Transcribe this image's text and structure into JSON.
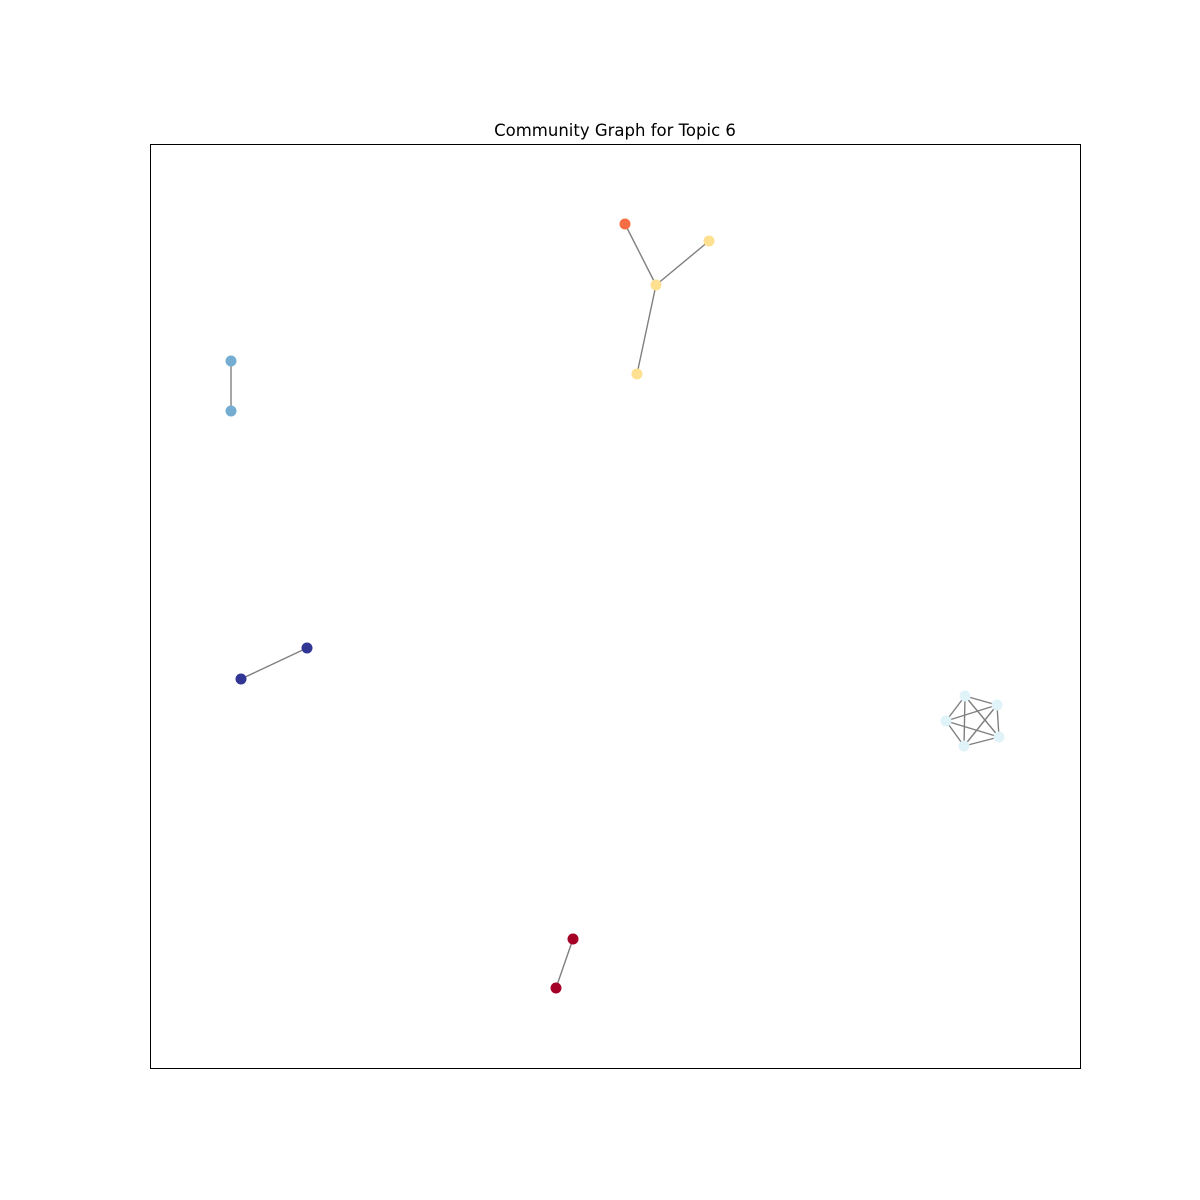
{
  "title": "Community Graph for Topic 6",
  "colors": {
    "background": "#ffffff",
    "frame": "#000000",
    "edge": "#7f7f7f"
  },
  "communities": [
    {
      "id": "light-blue-clique",
      "color": "#e0f3f8",
      "nodes": [
        "a1",
        "a2",
        "a3",
        "a4",
        "a5"
      ],
      "edges": [
        [
          "a1",
          "a2"
        ],
        [
          "a1",
          "a3"
        ],
        [
          "a1",
          "a4"
        ],
        [
          "a1",
          "a5"
        ],
        [
          "a2",
          "a3"
        ],
        [
          "a2",
          "a4"
        ],
        [
          "a2",
          "a5"
        ],
        [
          "a3",
          "a4"
        ],
        [
          "a3",
          "a5"
        ],
        [
          "a4",
          "a5"
        ]
      ]
    },
    {
      "id": "yellow-star",
      "color": "#fee090",
      "nodes": [
        "b1",
        "b2",
        "b3"
      ],
      "edges": [
        [
          "b1",
          "b2"
        ],
        [
          "b1",
          "b3"
        ]
      ]
    },
    {
      "id": "orange-single",
      "color": "#f46d43",
      "nodes": [
        "c1"
      ],
      "edges": [
        [
          "c1",
          "b1"
        ]
      ]
    },
    {
      "id": "blue-pair",
      "color": "#74add1",
      "nodes": [
        "d1",
        "d2"
      ],
      "edges": [
        [
          "d1",
          "d2"
        ]
      ]
    },
    {
      "id": "navy-pair",
      "color": "#313695",
      "nodes": [
        "e1",
        "e2"
      ],
      "edges": [
        [
          "e1",
          "e2"
        ]
      ]
    },
    {
      "id": "red-pair",
      "color": "#a50026",
      "nodes": [
        "f1",
        "f2"
      ],
      "edges": [
        [
          "f1",
          "f2"
        ]
      ]
    }
  ]
}
